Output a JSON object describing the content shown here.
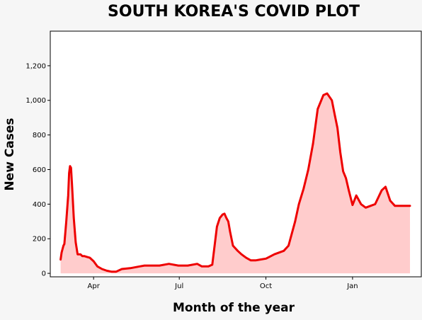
{
  "chart_data": {
    "type": "area",
    "title": "SOUTH KOREA'S COVID PLOT",
    "xlabel": "Month of the year",
    "ylabel": "New Cases",
    "x_ticks": [
      "Apr",
      "Jul",
      "Oct",
      "Jan"
    ],
    "y_ticks": [
      "0",
      "200",
      "400",
      "600",
      "800",
      "1,000",
      "1,200"
    ],
    "ylim": [
      -20,
      1400
    ],
    "xlim": [
      "2020-02-15",
      "2021-03-15"
    ],
    "grid": false,
    "colors": {
      "line": "#ee0000",
      "fill": "#ffcccc",
      "background": "#f6f6f6",
      "plot_background": "#ffffff"
    },
    "series": [
      {
        "x": [
          "2020-02-26",
          "2020-02-27",
          "2020-02-29",
          "2020-03-01",
          "2020-03-03",
          "2020-03-05",
          "2020-03-06",
          "2020-03-07",
          "2020-03-08",
          "2020-03-09",
          "2020-03-11",
          "2020-03-13",
          "2020-03-15",
          "2020-03-18",
          "2020-03-20",
          "2020-03-22",
          "2020-03-25",
          "2020-03-28",
          "2020-04-01",
          "2020-04-05",
          "2020-04-10",
          "2020-04-15",
          "2020-04-20",
          "2020-04-25",
          "2020-05-01",
          "2020-05-10",
          "2020-05-20",
          "2020-05-25",
          "2020-06-01",
          "2020-06-10",
          "2020-06-20",
          "2020-06-30",
          "2020-07-10",
          "2020-07-20",
          "2020-07-25",
          "2020-08-01",
          "2020-08-05",
          "2020-08-10",
          "2020-08-13",
          "2020-08-16",
          "2020-08-18",
          "2020-08-20",
          "2020-08-22",
          "2020-08-24",
          "2020-08-27",
          "2020-09-01",
          "2020-09-05",
          "2020-09-10",
          "2020-09-15",
          "2020-09-20",
          "2020-09-25",
          "2020-10-01",
          "2020-10-10",
          "2020-10-20",
          "2020-10-25",
          "2020-11-01",
          "2020-11-05",
          "2020-11-10",
          "2020-11-15",
          "2020-11-20",
          "2020-11-25",
          "2020-12-01",
          "2020-12-05",
          "2020-12-10",
          "2020-12-13",
          "2020-12-16",
          "2020-12-19",
          "2020-12-22",
          "2020-12-25",
          "2020-12-28",
          "2021-01-01",
          "2021-01-05",
          "2021-01-10",
          "2021-01-15",
          "2021-01-20",
          "2021-01-25",
          "2021-02-01",
          "2021-02-05",
          "2021-02-10",
          "2021-02-15",
          "2021-02-18",
          "2021-02-20",
          "2021-02-24",
          "2021-02-28",
          "2021-03-03"
        ],
        "y": [
          80,
          120,
          160,
          170,
          300,
          450,
          580,
          620,
          610,
          520,
          320,
          180,
          110,
          110,
          100,
          100,
          95,
          90,
          70,
          40,
          25,
          15,
          10,
          10,
          25,
          30,
          40,
          45,
          45,
          45,
          55,
          45,
          45,
          55,
          40,
          40,
          50,
          270,
          320,
          340,
          345,
          320,
          300,
          240,
          160,
          130,
          110,
          90,
          75,
          75,
          80,
          85,
          110,
          130,
          160,
          300,
          400,
          490,
          600,
          750,
          950,
          1030,
          1040,
          1000,
          920,
          840,
          700,
          590,
          550,
          480,
          395,
          450,
          400,
          380,
          390,
          400,
          480,
          500,
          420,
          390,
          390,
          390,
          390,
          390,
          390
        ]
      }
    ]
  }
}
